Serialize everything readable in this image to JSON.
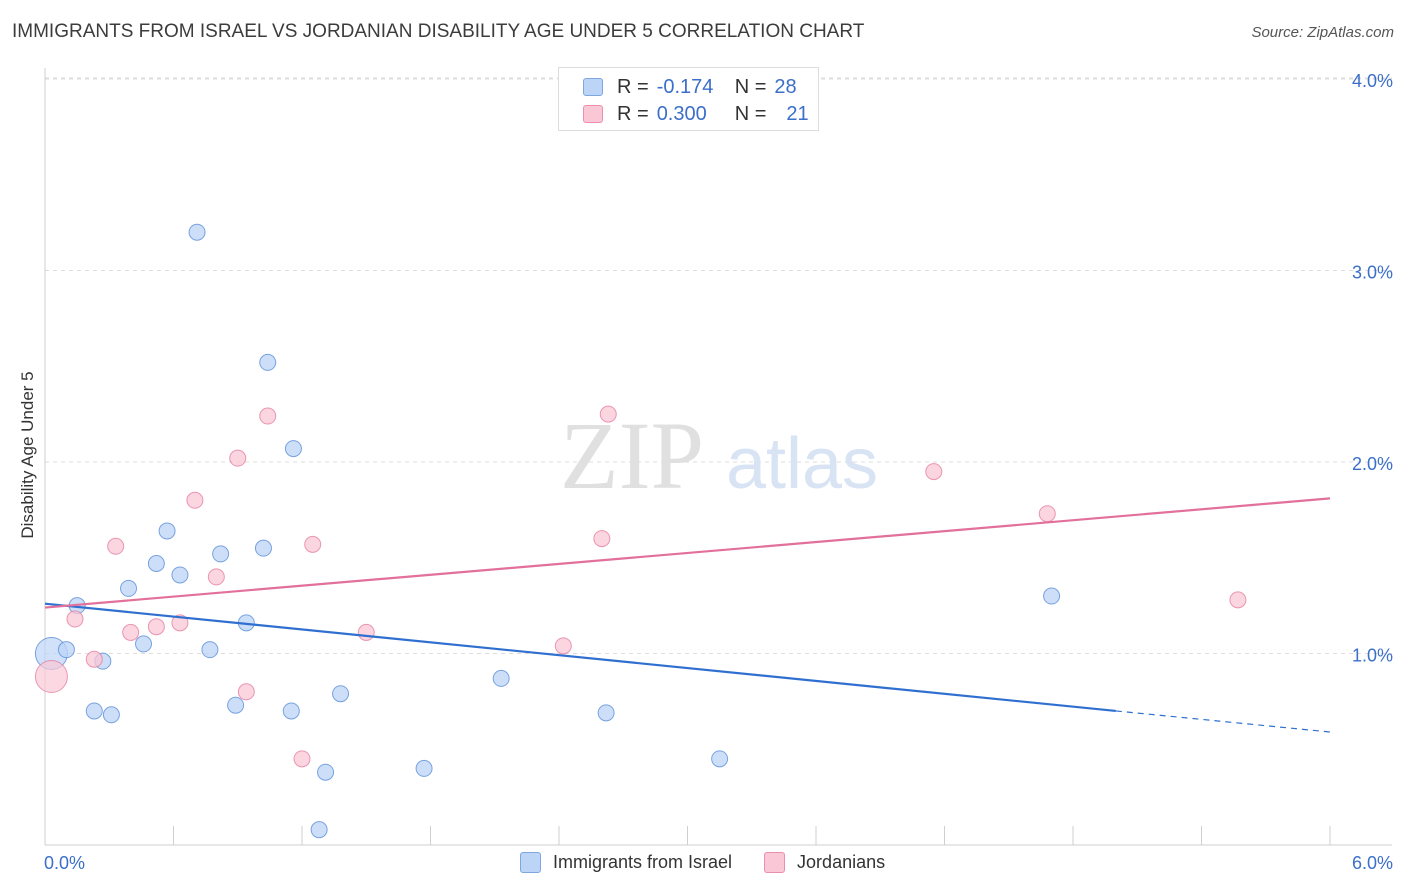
{
  "header": {
    "title": "IMMIGRANTS FROM ISRAEL VS JORDANIAN DISABILITY AGE UNDER 5 CORRELATION CHART",
    "source": "Source: ZipAtlas.com"
  },
  "watermark": {
    "zip": "ZIP",
    "atlas": "atlas"
  },
  "legend": {
    "r_label": "R =",
    "n_label": "N =",
    "rows": [
      {
        "r": "-0.174",
        "n": "28",
        "color": "#bcd4f6"
      },
      {
        "r": "0.300",
        "n": "21",
        "color": "#f9c7d6"
      }
    ]
  },
  "chart_data": {
    "type": "scatter",
    "title": "IMMIGRANTS FROM ISRAEL VS JORDANIAN DISABILITY AGE UNDER 5 CORRELATION CHART",
    "xlabel": "",
    "ylabel": "Disability Age Under 5",
    "xlim": [
      0,
      6
    ],
    "ylim": [
      0,
      4.1
    ],
    "x_tick_labels": [
      "0.0%",
      "6.0%"
    ],
    "y_ticks": [
      1,
      2,
      3,
      4
    ],
    "y_tick_labels": [
      "1.0%",
      "2.0%",
      "3.0%",
      "4.0%"
    ],
    "grid": "horizontal dashed",
    "legend_position": "top-center",
    "series": [
      {
        "name": "Immigrants from Israel",
        "color": "#5b8fd9",
        "fill": "#bcd4f6",
        "points": [
          [
            0.03,
            1.0
          ],
          [
            0.1,
            1.02
          ],
          [
            0.15,
            1.25
          ],
          [
            0.23,
            0.7
          ],
          [
            0.27,
            0.96
          ],
          [
            0.31,
            0.68
          ],
          [
            0.39,
            1.34
          ],
          [
            0.46,
            1.05
          ],
          [
            0.52,
            1.47
          ],
          [
            0.57,
            1.64
          ],
          [
            0.63,
            1.41
          ],
          [
            0.71,
            3.2
          ],
          [
            0.77,
            1.02
          ],
          [
            0.82,
            1.52
          ],
          [
            0.89,
            0.73
          ],
          [
            0.94,
            1.16
          ],
          [
            1.02,
            1.55
          ],
          [
            1.04,
            2.52
          ],
          [
            1.15,
            0.7
          ],
          [
            1.16,
            2.07
          ],
          [
            1.28,
            0.08
          ],
          [
            1.31,
            0.38
          ],
          [
            1.38,
            0.79
          ],
          [
            1.77,
            0.4
          ],
          [
            2.13,
            0.87
          ],
          [
            2.62,
            0.69
          ],
          [
            3.15,
            0.45
          ],
          [
            4.7,
            1.3
          ]
        ],
        "trend": {
          "x": [
            0,
            5.0
          ],
          "y": [
            1.26,
            0.7
          ],
          "dashed_to": [
            6.0,
            0.59
          ]
        }
      },
      {
        "name": "Jordanians",
        "color": "#e57fa2",
        "fill": "#f9c7d6",
        "points": [
          [
            0.03,
            0.88
          ],
          [
            0.14,
            1.18
          ],
          [
            0.23,
            0.97
          ],
          [
            0.33,
            1.56
          ],
          [
            0.4,
            1.11
          ],
          [
            0.52,
            1.14
          ],
          [
            0.63,
            1.16
          ],
          [
            0.7,
            1.8
          ],
          [
            0.8,
            1.4
          ],
          [
            0.9,
            2.02
          ],
          [
            0.94,
            0.8
          ],
          [
            1.04,
            2.24
          ],
          [
            1.2,
            0.45
          ],
          [
            1.25,
            1.57
          ],
          [
            1.5,
            1.11
          ],
          [
            2.42,
            1.04
          ],
          [
            2.6,
            1.6
          ],
          [
            2.63,
            2.25
          ],
          [
            4.15,
            1.95
          ],
          [
            4.68,
            1.73
          ],
          [
            5.57,
            1.28
          ]
        ],
        "trend": {
          "x": [
            0,
            6.0
          ],
          "y": [
            1.24,
            1.81
          ]
        }
      }
    ]
  }
}
